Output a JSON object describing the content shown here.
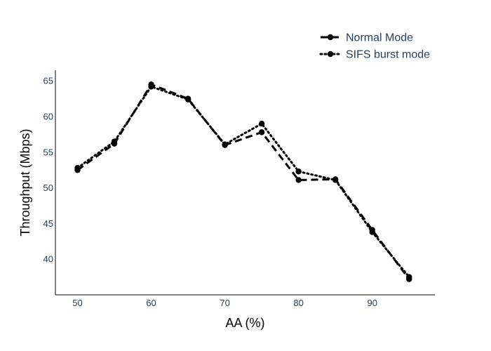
{
  "chart_data": {
    "type": "line",
    "title": "",
    "xlabel": "AA (%)",
    "ylabel": "Throughput (Mbps)",
    "xlim": [
      47,
      98.5
    ],
    "ylim": [
      35,
      66.5
    ],
    "x_ticks": [
      50,
      60,
      70,
      80,
      90
    ],
    "y_ticks": [
      40,
      45,
      50,
      55,
      60,
      65
    ],
    "grid": false,
    "legend_position": "top-right",
    "x": [
      50,
      55,
      60,
      65,
      70,
      75,
      80,
      85,
      90,
      95
    ],
    "series": [
      {
        "name": "Normal Mode",
        "values": [
          52.5,
          56.2,
          64.5,
          62.5,
          56.0,
          57.8,
          51.1,
          51.2,
          44.1,
          37.2
        ],
        "color": "#000000",
        "dash": "dashed"
      },
      {
        "name": "SIFS burst mode",
        "values": [
          52.8,
          56.5,
          64.2,
          62.4,
          56.1,
          59.0,
          52.3,
          51.1,
          43.8,
          37.5
        ],
        "color": "#000000",
        "dash": "dotted"
      }
    ]
  }
}
